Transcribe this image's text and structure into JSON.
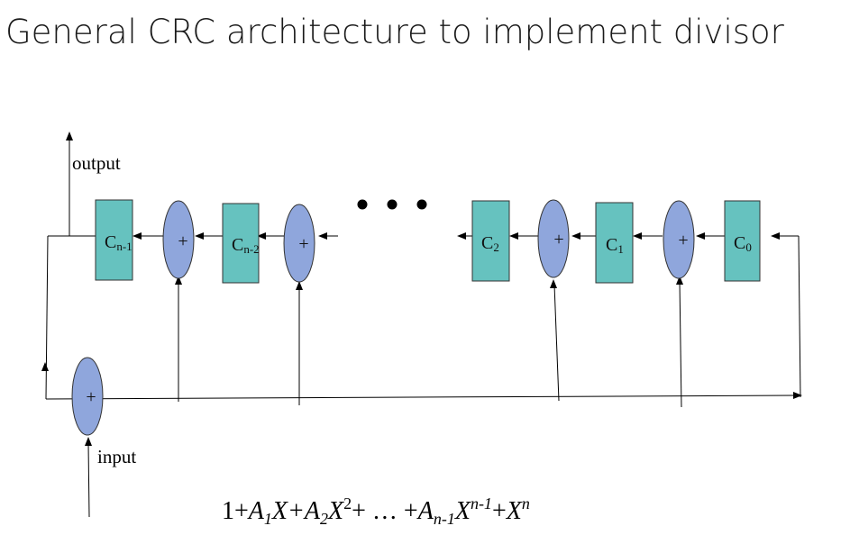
{
  "title": "General CRC architecture to implement divisor",
  "labels": {
    "output": "output",
    "input": "input",
    "xor_symbol": "+"
  },
  "registers": [
    {
      "base": "C",
      "sub": "n-1"
    },
    {
      "base": "C",
      "sub": "n-2"
    },
    {
      "base": "C",
      "sub": "2"
    },
    {
      "base": "C",
      "sub": "1"
    },
    {
      "base": "C",
      "sub": "0"
    }
  ],
  "polynomial": {
    "t0": "1+",
    "a1": "A",
    "a1_sub": "1",
    "x1": "X+",
    "a2": "A",
    "a2_sub": "2",
    "x2": "X",
    "x2_sup": "2",
    "mid": "+ … +",
    "an": "A",
    "an_sub": "n-1",
    "xn1": "X",
    "xn1_sup": "n-1",
    "plus": "+",
    "xn": "X",
    "xn_sup": "n"
  },
  "colors": {
    "register_fill": "#66c2bf",
    "xor_fill": "#8fa6dc"
  }
}
